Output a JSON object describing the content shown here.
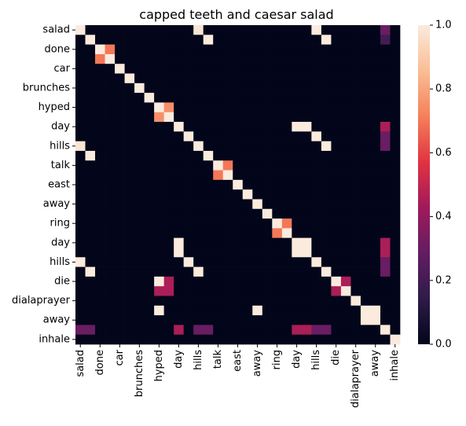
{
  "chart_data": {
    "type": "heatmap",
    "title": "capped teeth and caesar salad",
    "xlabel": "",
    "ylabel": "",
    "labels": [
      "salad",
      "",
      "done",
      "",
      "car",
      "",
      "brunches",
      "",
      "hyped",
      "",
      "day",
      "",
      "hills",
      "",
      "talk",
      "",
      "east",
      "",
      "away",
      "",
      "ring",
      "",
      "day",
      "",
      "hills",
      "",
      "die",
      "",
      "dialaprayer",
      "",
      "away",
      "",
      "inhale"
    ],
    "matrix": [
      [
        1,
        0,
        0,
        0,
        0,
        0,
        0,
        0,
        0,
        0,
        0,
        0,
        0.98,
        0,
        0,
        0,
        0,
        0,
        0,
        0,
        0,
        0,
        0,
        0,
        1,
        0,
        0,
        0,
        0,
        0,
        0,
        0.3,
        0
      ],
      [
        0,
        1,
        0,
        0,
        0,
        0,
        0,
        0,
        0,
        0,
        0,
        0,
        0,
        1,
        0,
        0,
        0,
        0,
        0,
        0,
        0,
        0,
        0,
        0,
        0,
        1,
        0,
        0,
        0,
        0,
        0,
        0.2,
        0
      ],
      [
        0,
        0,
        1,
        0.7,
        0,
        0,
        0,
        0,
        0,
        0,
        0,
        0,
        0,
        0,
        0,
        0,
        0,
        0,
        0,
        0,
        0,
        0,
        0,
        0,
        0,
        0,
        0,
        0,
        0,
        0,
        0,
        0,
        0
      ],
      [
        0,
        0,
        0.7,
        1,
        0,
        0,
        0,
        0,
        0,
        0,
        0,
        0,
        0,
        0,
        0,
        0,
        0,
        0,
        0,
        0,
        0,
        0,
        0,
        0,
        0,
        0,
        0,
        0,
        0,
        0,
        0,
        0,
        0
      ],
      [
        0,
        0,
        0,
        0,
        1,
        0,
        0,
        0,
        0,
        0,
        0,
        0,
        0,
        0,
        0,
        0,
        0,
        0,
        0,
        0,
        0,
        0,
        0,
        0,
        0,
        0,
        0,
        0,
        0,
        0,
        0,
        0,
        0
      ],
      [
        0,
        0,
        0,
        0,
        0,
        1,
        0,
        0,
        0,
        0,
        0,
        0,
        0,
        0,
        0,
        0,
        0,
        0,
        0,
        0,
        0,
        0,
        0,
        0,
        0,
        0,
        0,
        0,
        0,
        0,
        0,
        0,
        0
      ],
      [
        0,
        0,
        0,
        0,
        0,
        0,
        1,
        0,
        0,
        0,
        0,
        0,
        0,
        0,
        0,
        0,
        0,
        0,
        0,
        0,
        0,
        0,
        0,
        0,
        0,
        0,
        0,
        0,
        0,
        0,
        0,
        0,
        0
      ],
      [
        0,
        0,
        0,
        0,
        0,
        0,
        0,
        1,
        0,
        0,
        0,
        0,
        0,
        0,
        0,
        0,
        0,
        0,
        0,
        0,
        0,
        0,
        0,
        0,
        0,
        0,
        0,
        0,
        0,
        0,
        0,
        0,
        0
      ],
      [
        0,
        0,
        0,
        0,
        0,
        0,
        0,
        0,
        1,
        0.75,
        0,
        0,
        0,
        0,
        0,
        0,
        0,
        0,
        0,
        0,
        0,
        0,
        0,
        0,
        0,
        0,
        0,
        0,
        0,
        0,
        0,
        0,
        0
      ],
      [
        0,
        0,
        0,
        0,
        0,
        0,
        0,
        0,
        0.75,
        1,
        0,
        0,
        0,
        0,
        0,
        0,
        0,
        0,
        0,
        0,
        0,
        0,
        0,
        0,
        0,
        0,
        0,
        0,
        0,
        0,
        0,
        0,
        0
      ],
      [
        0,
        0,
        0,
        0,
        0,
        0,
        0,
        0,
        0,
        0,
        1,
        0,
        0,
        0,
        0,
        0,
        0,
        0,
        0,
        0,
        0,
        0,
        1,
        1,
        0,
        0,
        0,
        0,
        0,
        0,
        0,
        0.45,
        0
      ],
      [
        0,
        0,
        0,
        0,
        0,
        0,
        0,
        0,
        0,
        0,
        0,
        1,
        0,
        0,
        0,
        0,
        0,
        0,
        0,
        0,
        0,
        0,
        0,
        0,
        1,
        0,
        0,
        0,
        0,
        0,
        0,
        0.3,
        0
      ],
      [
        0.98,
        0,
        0,
        0,
        0,
        0,
        0,
        0,
        0,
        0,
        0,
        0,
        1,
        0,
        0,
        0,
        0,
        0,
        0,
        0,
        0,
        0,
        0,
        0,
        0,
        1,
        0,
        0,
        0,
        0,
        0,
        0.3,
        0
      ],
      [
        0,
        1,
        0,
        0,
        0,
        0,
        0,
        0,
        0,
        0,
        0,
        0,
        0,
        1,
        0,
        0,
        0,
        0,
        0,
        0,
        0,
        0,
        0,
        0,
        0,
        0,
        0,
        0,
        0,
        0,
        0,
        0,
        0
      ],
      [
        0,
        0,
        0,
        0,
        0,
        0,
        0,
        0,
        0,
        0,
        0,
        0,
        0,
        0,
        1,
        0.7,
        0,
        0,
        0,
        0,
        0,
        0,
        0,
        0,
        0,
        0,
        0,
        0,
        0,
        0,
        0,
        0,
        0
      ],
      [
        0,
        0,
        0,
        0,
        0,
        0,
        0,
        0,
        0,
        0,
        0,
        0,
        0,
        0,
        0.7,
        1,
        0,
        0,
        0,
        0,
        0,
        0,
        0,
        0,
        0,
        0,
        0,
        0,
        0,
        0,
        0,
        0,
        0
      ],
      [
        0,
        0,
        0,
        0,
        0,
        0,
        0,
        0,
        0,
        0,
        0,
        0,
        0,
        0,
        0,
        0,
        1,
        0,
        0,
        0,
        0,
        0,
        0,
        0,
        0,
        0,
        0,
        0,
        0,
        0,
        0,
        0,
        0
      ],
      [
        0,
        0,
        0,
        0,
        0,
        0,
        0,
        0,
        0,
        0,
        0,
        0,
        0,
        0,
        0,
        0,
        0,
        1,
        0,
        0,
        0,
        0,
        0,
        0,
        0,
        0,
        0,
        0,
        0,
        0,
        0,
        0,
        0
      ],
      [
        0,
        0,
        0,
        0,
        0,
        0,
        0,
        0,
        0,
        0,
        0,
        0,
        0,
        0,
        0,
        0,
        0,
        0,
        1,
        0,
        0,
        0,
        0,
        0,
        0,
        0,
        0,
        0,
        0,
        0,
        0,
        0,
        0
      ],
      [
        0,
        0,
        0,
        0,
        0,
        0,
        0,
        0,
        0,
        0,
        0,
        0,
        0,
        0,
        0,
        0,
        0,
        0,
        0,
        1,
        0,
        0,
        0,
        0,
        0,
        0,
        0,
        0,
        0,
        0,
        0,
        0,
        0
      ],
      [
        0,
        0,
        0,
        0,
        0,
        0,
        0,
        0,
        0,
        0,
        0,
        0,
        0,
        0,
        0,
        0,
        0,
        0,
        0,
        0,
        1,
        0.7,
        0,
        0,
        0,
        0,
        0,
        0,
        0,
        0,
        0,
        0,
        0
      ],
      [
        0,
        0,
        0,
        0,
        0,
        0,
        0,
        0,
        0,
        0,
        0,
        0,
        0,
        0,
        0,
        0,
        0,
        0,
        0,
        0,
        0.7,
        1,
        0,
        0,
        0,
        0,
        0,
        0,
        0,
        0,
        0,
        0,
        0
      ],
      [
        0,
        0,
        0,
        0,
        0,
        0,
        0,
        0,
        0,
        0,
        1,
        0,
        0,
        0,
        0,
        0,
        0,
        0,
        0,
        0,
        0,
        0,
        1,
        1,
        0,
        0,
        0,
        0,
        0,
        0,
        0,
        0.45,
        0
      ],
      [
        0,
        0,
        0,
        0,
        0,
        0,
        0,
        0,
        0,
        0,
        1,
        0,
        0,
        0,
        0,
        0,
        0,
        0,
        0,
        0,
        0,
        0,
        1,
        1,
        0,
        0,
        0,
        0,
        0,
        0,
        0,
        0.45,
        0
      ],
      [
        1,
        0,
        0,
        0,
        0,
        0,
        0,
        0,
        0,
        0,
        0,
        1,
        0,
        0,
        0,
        0,
        0,
        0,
        0,
        0,
        0,
        0,
        0,
        0,
        1,
        0,
        0,
        0,
        0,
        0,
        0,
        0.3,
        0
      ],
      [
        0,
        1,
        0,
        0,
        0,
        0,
        0,
        0,
        0,
        0,
        0,
        0,
        1,
        0,
        0,
        0,
        0,
        0,
        0,
        0,
        0,
        0,
        0,
        0,
        0,
        1,
        0,
        0,
        0,
        0,
        0,
        0.3,
        0
      ],
      [
        0,
        0,
        0,
        0,
        0,
        0,
        0,
        0,
        1,
        0.45,
        0,
        0,
        0,
        0,
        0,
        0,
        0,
        0,
        0,
        0,
        0,
        0,
        0,
        0,
        0,
        0,
        1,
        0.45,
        0,
        0,
        0,
        0,
        0
      ],
      [
        0,
        0,
        0,
        0,
        0,
        0,
        0,
        0,
        0.45,
        0.45,
        0,
        0,
        0,
        0,
        0,
        0,
        0,
        0,
        0,
        0,
        0,
        0,
        0,
        0,
        0,
        0,
        0.45,
        1,
        0,
        0,
        0,
        0,
        0
      ],
      [
        0,
        0,
        0,
        0,
        0,
        0,
        0,
        0,
        0,
        0,
        0,
        0,
        0,
        0,
        0,
        0,
        0,
        0,
        0,
        0,
        0,
        0,
        0,
        0,
        0,
        0,
        0,
        0,
        1,
        0,
        0,
        0,
        0
      ],
      [
        0,
        0,
        0,
        0,
        0,
        0,
        0,
        0,
        1,
        0,
        0,
        0,
        0,
        0,
        0,
        0,
        0,
        0,
        1,
        0,
        0,
        0,
        0,
        0,
        0,
        0,
        0,
        0,
        0,
        1,
        1,
        0,
        0
      ],
      [
        0,
        0,
        0,
        0,
        0,
        0,
        0,
        0,
        0,
        0,
        0,
        0,
        0,
        0,
        0,
        0,
        0,
        0,
        0,
        0,
        0,
        0,
        0,
        0,
        0,
        0,
        0,
        0,
        0,
        1,
        1,
        0,
        0
      ],
      [
        0.3,
        0.3,
        0,
        0,
        0,
        0,
        0,
        0,
        0,
        0,
        0.45,
        0,
        0.3,
        0.3,
        0,
        0,
        0,
        0,
        0,
        0,
        0,
        0,
        0.45,
        0.45,
        0.3,
        0.3,
        0,
        0,
        0,
        0,
        0,
        1,
        0
      ],
      [
        0,
        0,
        0,
        0,
        0,
        0,
        0,
        0,
        0,
        0,
        0,
        0,
        0,
        0,
        0,
        0,
        0,
        0,
        0,
        0,
        0,
        0,
        0,
        0,
        0,
        0,
        0,
        0,
        0,
        0,
        0,
        0,
        1
      ]
    ],
    "vmin": 0,
    "vmax": 1,
    "colorbar_ticks": [
      "0.0",
      "0.2",
      "0.4",
      "0.6",
      "0.8",
      "1.0"
    ],
    "colormap": [
      "#03051a",
      "#2d1c48",
      "#631d63",
      "#a11a5b",
      "#e13342",
      "#f5805a",
      "#fabd95",
      "#faebdd"
    ]
  }
}
